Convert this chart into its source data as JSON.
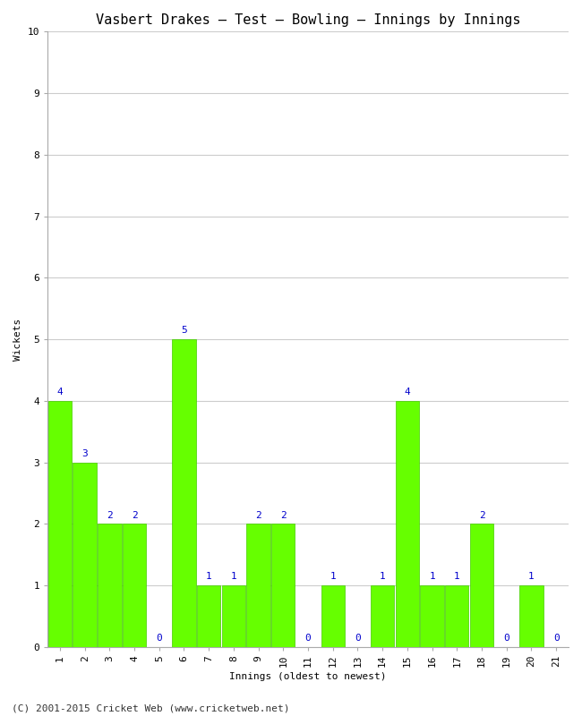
{
  "title": "Vasbert Drakes – Test – Bowling – Innings by Innings",
  "xlabel": "Innings (oldest to newest)",
  "ylabel": "Wickets",
  "categories": [
    "1",
    "2",
    "3",
    "4",
    "5",
    "6",
    "7",
    "8",
    "9",
    "10",
    "11",
    "12",
    "13",
    "14",
    "15",
    "16",
    "17",
    "18",
    "19",
    "20",
    "21"
  ],
  "values": [
    4,
    3,
    2,
    2,
    0,
    5,
    1,
    1,
    2,
    2,
    0,
    1,
    0,
    1,
    4,
    1,
    1,
    2,
    0,
    1,
    0
  ],
  "bar_color": "#66ff00",
  "bar_edge_color": "#44cc00",
  "label_color": "#0000cc",
  "ylim": [
    0,
    10
  ],
  "yticks": [
    0,
    1,
    2,
    3,
    4,
    5,
    6,
    7,
    8,
    9,
    10
  ],
  "background_color": "#ffffff",
  "grid_color": "#cccccc",
  "title_fontsize": 11,
  "axis_label_fontsize": 8,
  "tick_fontsize": 8,
  "label_fontsize": 8,
  "footer": "(C) 2001-2015 Cricket Web (www.cricketweb.net)",
  "footer_fontsize": 8
}
